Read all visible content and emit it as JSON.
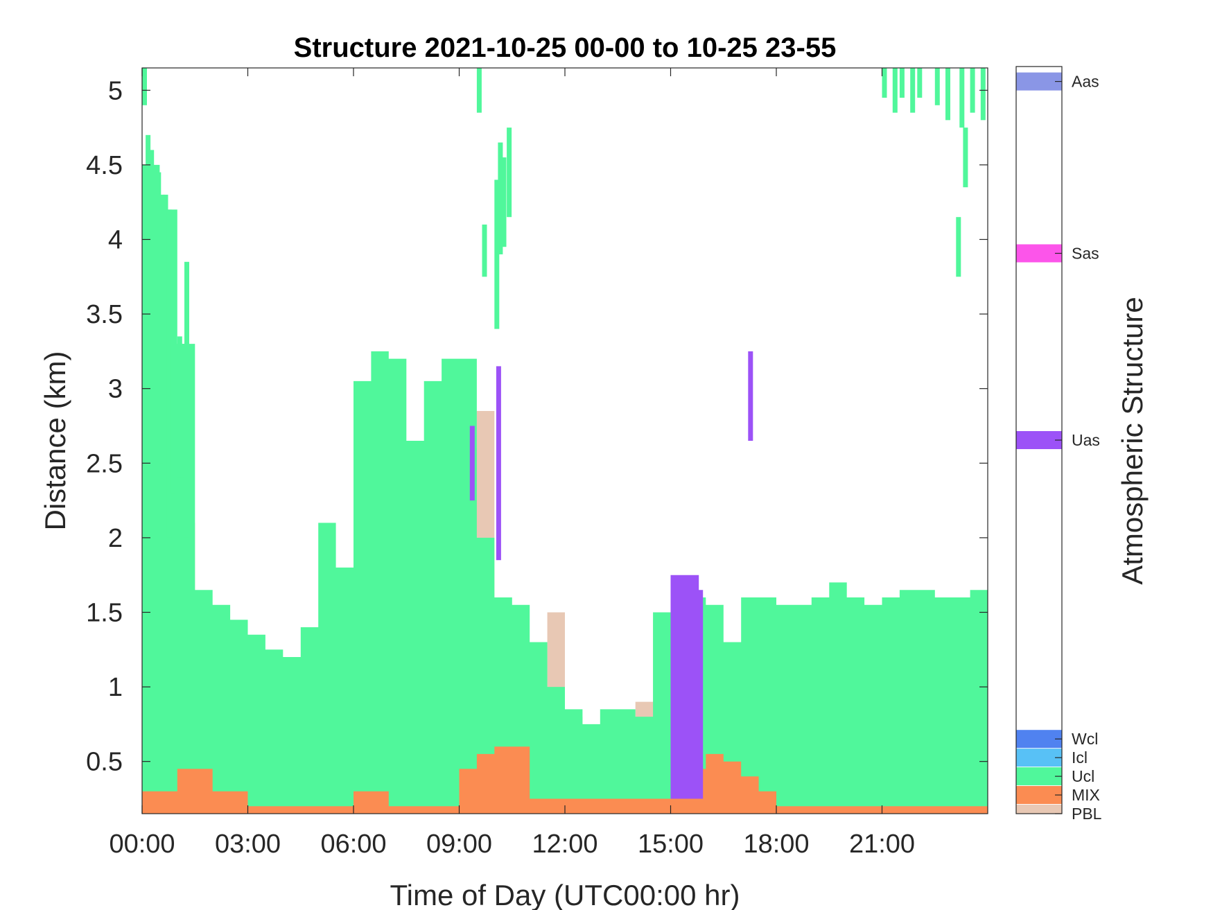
{
  "chart_data": {
    "type": "heatmap",
    "title": "Structure 2021-10-25 00-00 to 10-25 23-55",
    "xlabel": "Time of Day (UTC00:00 hr)",
    "ylabel": "Distance (km)",
    "x_tick_labels": [
      "00:00",
      "03:00",
      "06:00",
      "09:00",
      "12:00",
      "15:00",
      "18:00",
      "21:00"
    ],
    "x_tick_hours": [
      0,
      3,
      6,
      9,
      12,
      15,
      18,
      21
    ],
    "xlim_hours": [
      0,
      24
    ],
    "y_ticks": [
      0.5,
      1,
      1.5,
      2,
      2.5,
      3,
      3.5,
      4,
      4.5,
      5
    ],
    "y_tick_labels": [
      "0.5",
      "1",
      "1.5",
      "2",
      "2.5",
      "3",
      "3.5",
      "4",
      "4.5",
      "5"
    ],
    "ylim": [
      0.15,
      5.15
    ],
    "colorbar": {
      "label": "Atmospheric Structure",
      "categories": [
        {
          "name": "PBL",
          "color": "#E8C8B4"
        },
        {
          "name": "MIX",
          "color": "#FB8C52"
        },
        {
          "name": "Ucl",
          "color": "#50F79B"
        },
        {
          "name": "Icl",
          "color": "#58C1F6"
        },
        {
          "name": "Wcl",
          "color": "#5082F0"
        },
        {
          "name": "Uas",
          "color": "#9C52F7"
        },
        {
          "name": "Sas",
          "color": "#FC55EA"
        },
        {
          "name": "Aas",
          "color": "#8A96E6"
        }
      ]
    },
    "layers": [
      {
        "class": "PBL",
        "x": [
          0,
          0.4,
          0.5,
          0.6,
          0.8,
          1.2,
          1.5,
          2,
          2.5,
          3,
          3.5,
          4,
          4.5,
          5,
          5.5,
          6,
          6.5,
          7,
          7.5,
          8,
          8.5,
          9,
          9.5,
          9.8,
          10,
          10.5,
          11,
          11.5,
          12,
          12.5,
          13,
          13.5,
          14,
          14.5,
          15,
          15.5,
          16,
          16.5,
          17,
          17.5,
          18,
          18.5,
          19,
          19.5,
          20,
          20.5,
          21,
          21.5,
          22,
          22.5,
          23,
          23.5,
          24
        ],
        "y": [
          3.25,
          3.25,
          3.6,
          3.75,
          2.6,
          2.1,
          1.05,
          0.95,
          0.95,
          0.8,
          0.7,
          0.6,
          0.6,
          1.1,
          1.5,
          2.6,
          2.6,
          2.55,
          2.1,
          2.1,
          2.6,
          2.6,
          2.85,
          2.85,
          1.1,
          0.9,
          0.85,
          1.5,
          0.8,
          0.55,
          0.7,
          0.8,
          0.9,
          1.45,
          1.45,
          1.05,
          0.95,
          0.95,
          1.1,
          1.1,
          1.0,
          1.3,
          1.45,
          1.45,
          1.45,
          1.4,
          1.45,
          1.55,
          1.6,
          1.6,
          1.5,
          1.5,
          1.75
        ]
      },
      {
        "class": "Ucl",
        "x": [
          0,
          0.5,
          1,
          1.5,
          2,
          2.5,
          3,
          3.5,
          4,
          4.5,
          5,
          5.5,
          6,
          6.5,
          7,
          7.5,
          8,
          8.5,
          9,
          9.5,
          10,
          10.5,
          11,
          11.5,
          12,
          12.5,
          13,
          13.5,
          14,
          14.5,
          15,
          15.5,
          16,
          16.5,
          17,
          17.5,
          18,
          18.5,
          19,
          19.5,
          20,
          20.5,
          21,
          21.5,
          22,
          22.5,
          23,
          23.5,
          24
        ],
        "y": [
          4.5,
          4.2,
          3.3,
          1.65,
          1.55,
          1.45,
          1.35,
          1.25,
          1.2,
          1.4,
          2.1,
          1.8,
          3.05,
          3.25,
          3.2,
          2.65,
          3.05,
          3.2,
          3.2,
          2.0,
          1.6,
          1.55,
          1.3,
          1.0,
          0.85,
          0.75,
          0.85,
          0.85,
          0.8,
          1.5,
          1.6,
          1.6,
          1.55,
          1.3,
          1.6,
          1.6,
          1.55,
          1.55,
          1.6,
          1.7,
          1.6,
          1.55,
          1.6,
          1.65,
          1.65,
          1.6,
          1.6,
          1.65,
          1.65
        ]
      },
      {
        "class": "MIX",
        "x": [
          0,
          1,
          2,
          3,
          4,
          5,
          6,
          7,
          8,
          9,
          9.5,
          10,
          11,
          12,
          13,
          14,
          15,
          15.5,
          16,
          16.5,
          17,
          17.5,
          18,
          24
        ],
        "y": [
          0.3,
          0.45,
          0.3,
          0.2,
          0.2,
          0.2,
          0.3,
          0.2,
          0.2,
          0.45,
          0.55,
          0.6,
          0.25,
          0.25,
          0.25,
          0.25,
          0.25,
          0.45,
          0.55,
          0.5,
          0.4,
          0.3,
          0.2,
          0.2
        ]
      },
      {
        "class": "Uas",
        "x": [
          15,
          15.5,
          15.8
        ],
        "y": [
          1.75,
          1.75,
          1.65
        ],
        "base": 0.25
      }
    ],
    "upper_cloud_streaks": [
      {
        "class": "Ucl",
        "x_hours": [
          0,
          0.1,
          0.2,
          0.4,
          0.5,
          0.6,
          0.7,
          0.8,
          1.0,
          1.1,
          1.2
        ],
        "y_top": [
          5.15,
          4.7,
          4.6,
          4.45,
          4.3,
          4.3,
          4.2,
          3.85,
          3.35,
          3.3,
          3.85
        ],
        "y_bottom": [
          4.9,
          4.1,
          3.5,
          3.1,
          2.5,
          2.1,
          2.0,
          2.3,
          2.4,
          2.4,
          2.0
        ]
      },
      {
        "class": "Ucl",
        "x_hours": [
          9.5,
          9.65,
          10.0,
          10.1,
          10.2,
          10.35
        ],
        "y_top": [
          5.15,
          4.1,
          4.4,
          4.65,
          4.55,
          4.75
        ],
        "y_bottom": [
          4.85,
          3.75,
          3.4,
          3.9,
          3.95,
          4.15
        ]
      },
      {
        "class": "Ucl",
        "x_hours": [
          21.0,
          21.3,
          21.5,
          21.8,
          22.0,
          22.5,
          22.8,
          23.2,
          23.5,
          23.8
        ],
        "y_top": [
          5.15,
          5.15,
          5.15,
          5.15,
          5.15,
          5.15,
          5.15,
          5.15,
          5.15,
          5.15
        ],
        "y_bottom": [
          4.95,
          4.85,
          4.95,
          4.85,
          4.95,
          4.9,
          4.8,
          4.75,
          4.85,
          4.8
        ]
      },
      {
        "class": "Ucl",
        "x_hours": [
          23.1,
          23.3
        ],
        "y_top": [
          4.15,
          4.75
        ],
        "y_bottom": [
          3.75,
          4.35
        ]
      },
      {
        "class": "Uas",
        "x_hours": [
          17.2
        ],
        "y_top": [
          3.25
        ],
        "y_bottom": [
          2.65
        ]
      },
      {
        "class": "Uas",
        "x_hours": [
          9.3,
          10.05
        ],
        "y_top": [
          2.75,
          3.15
        ],
        "y_bottom": [
          2.25,
          1.85
        ]
      }
    ],
    "grid": false
  }
}
